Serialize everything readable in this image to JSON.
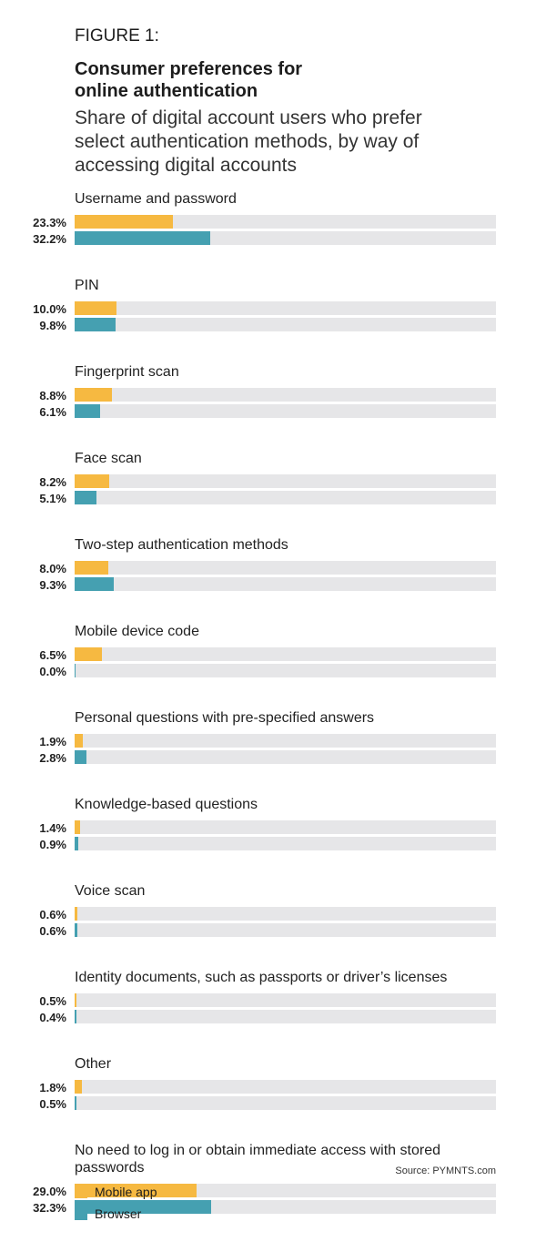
{
  "chart_data": {
    "type": "bar",
    "orientation": "horizontal",
    "title": "FIGURE 1:",
    "heading": "Consumer preferences for online authentication",
    "subtitle": "Share of digital account users who prefer select authentication methods, by way of accessing digital accounts",
    "categories": [
      "Username and password",
      "PIN",
      "Fingerprint scan",
      "Face scan",
      "Two-step authentication methods",
      "Mobile device code",
      "Personal questions with pre-specified answers",
      "Knowledge-based questions",
      "Voice scan",
      "Identity documents, such as passports or driver’s licenses",
      "Other",
      "No need to log in or obtain immediate access with stored passwords"
    ],
    "series": [
      {
        "name": "Mobile app",
        "color": "#f6b941",
        "values": [
          23.3,
          10.0,
          8.8,
          8.2,
          8.0,
          6.5,
          1.9,
          1.4,
          0.6,
          0.5,
          1.8,
          29.0
        ],
        "value_labels": [
          "23.3%",
          "10.0%",
          "8.8%",
          "8.2%",
          "8.0%",
          "6.5%",
          "1.9%",
          "1.4%",
          "0.6%",
          "0.5%",
          "1.8%",
          "29.0%"
        ]
      },
      {
        "name": "Browser",
        "color": "#45a0b1",
        "values": [
          32.2,
          9.8,
          6.1,
          5.1,
          9.3,
          0.0,
          2.8,
          0.9,
          0.6,
          0.4,
          0.5,
          32.3
        ],
        "value_labels": [
          "32.2%",
          "9.8%",
          "6.1%",
          "5.1%",
          "9.3%",
          "0.0%",
          "2.8%",
          "0.9%",
          "0.6%",
          "0.4%",
          "0.5%",
          "32.3%"
        ]
      }
    ],
    "xlim": [
      0,
      100
    ],
    "source": "Source: PYMNTS.com"
  }
}
